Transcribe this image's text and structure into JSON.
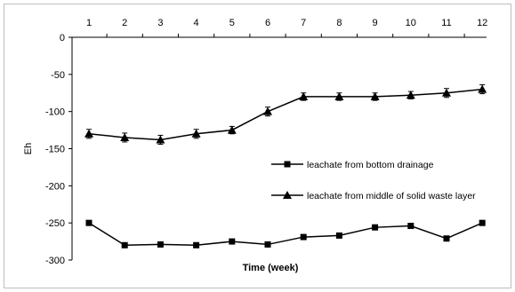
{
  "chart_data": {
    "type": "line",
    "title": "",
    "xlabel": "Time (week)",
    "ylabel": "Eh",
    "x": [
      1,
      2,
      3,
      4,
      5,
      6,
      7,
      8,
      9,
      10,
      11,
      12
    ],
    "x_axis_position": "top",
    "ylim": [
      -300,
      0
    ],
    "yticks": [
      0,
      -50,
      -100,
      -150,
      -200,
      -250,
      -300
    ],
    "grid": false,
    "legend_position": "center-right",
    "series": [
      {
        "name": "leachate from bottom drainage",
        "marker": "square",
        "color": "#000000",
        "values": [
          -250,
          -280,
          -279,
          -280,
          -275,
          -279,
          -269,
          -267,
          -256,
          -254,
          -271,
          -250
        ],
        "errors": [
          0,
          2,
          2,
          2,
          2,
          2,
          3,
          3,
          3,
          3,
          2,
          2
        ]
      },
      {
        "name": "leachate from middle of solid waste layer",
        "marker": "triangle",
        "color": "#000000",
        "values": [
          -130,
          -135,
          -138,
          -130,
          -125,
          -100,
          -80,
          -80,
          -80,
          -78,
          -75,
          -70
        ],
        "errors": [
          6,
          6,
          6,
          6,
          5,
          6,
          5,
          5,
          5,
          5,
          6,
          6
        ]
      }
    ]
  }
}
